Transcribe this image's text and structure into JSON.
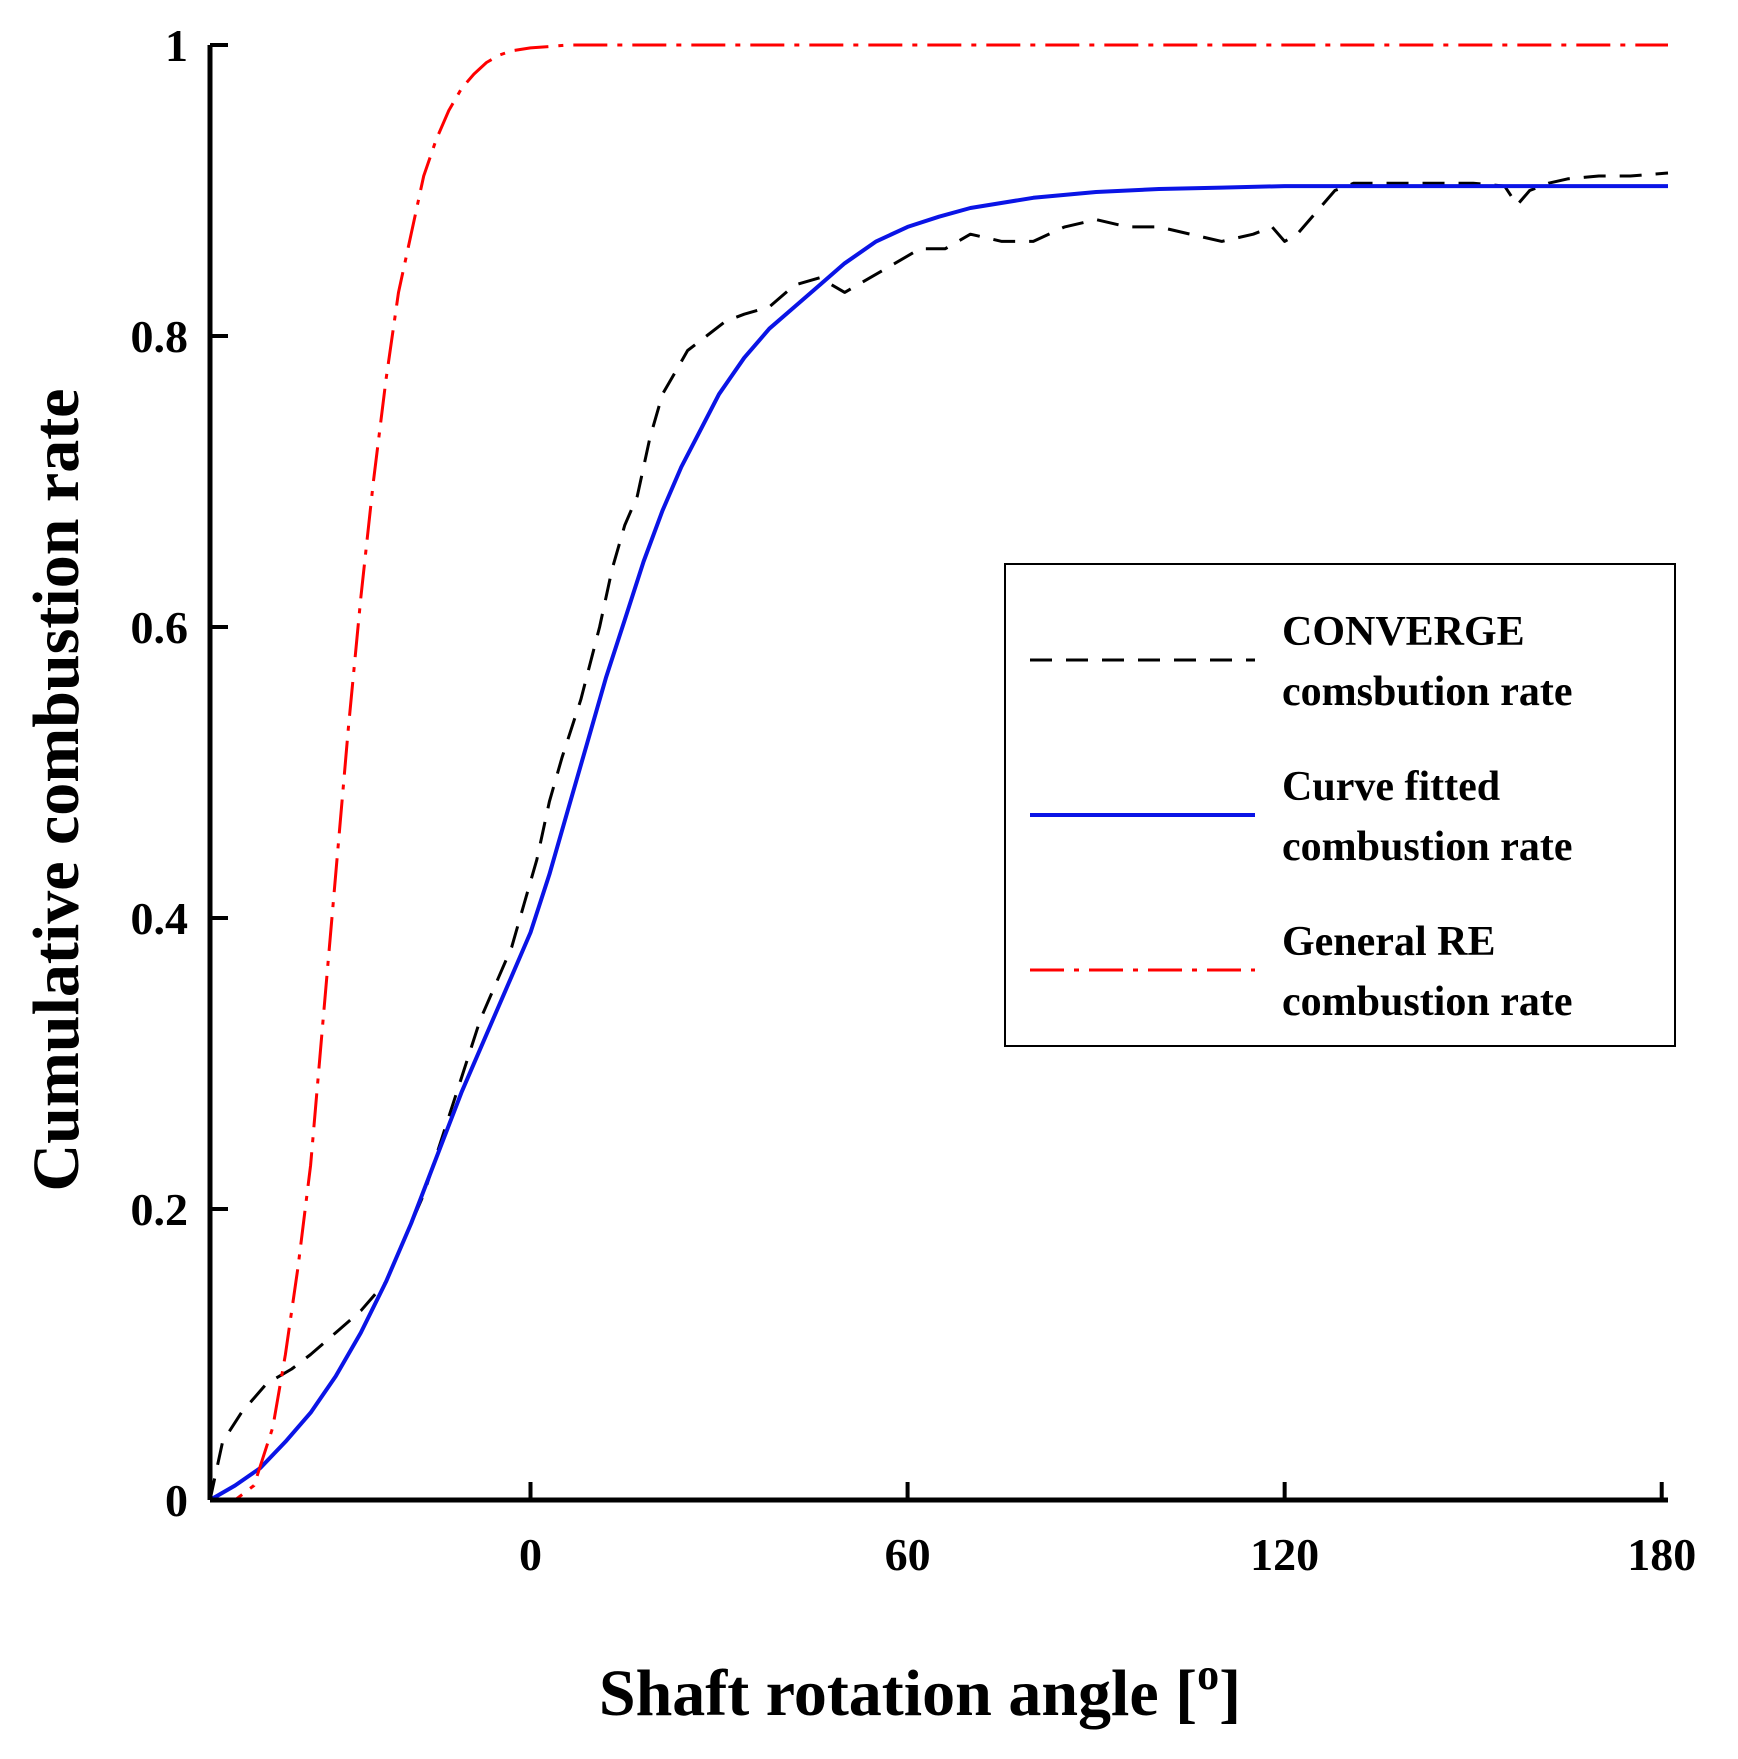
{
  "chart_data": {
    "type": "line",
    "xlabel": "Shaft rotation angle [",
    "xlabel_unit": "o",
    "xlabel_close": "]",
    "ylabel": "Cumulative  combustion  rate",
    "xlim": [
      -51,
      181
    ],
    "ylim": [
      0,
      1
    ],
    "x_ticks": [
      0,
      60,
      120,
      180
    ],
    "x_tick_labels": [
      "0",
      "60",
      "120",
      "180"
    ],
    "y_ticks": [
      0,
      0.2,
      0.4,
      0.6,
      0.8,
      1
    ],
    "y_tick_labels": [
      "0",
      "0.2",
      "0.4",
      "0.6",
      "0.8",
      "1"
    ],
    "grid": false,
    "legend_position": "right-middle",
    "series": [
      {
        "name_lines": [
          "CONVERGE",
          "comsbution rate"
        ],
        "color": "#000000",
        "dash": "dashed",
        "x": [
          -51,
          -49,
          -46,
          -42,
          -38,
          -35,
          -31,
          -27,
          -23,
          -20,
          -17,
          -14,
          -11,
          -8,
          -5,
          -3,
          -1,
          1,
          3,
          5,
          8,
          11,
          13,
          15,
          17,
          19,
          21,
          23,
          25,
          28,
          31,
          34,
          38,
          42,
          46,
          50,
          54,
          58,
          62,
          66,
          70,
          75,
          80,
          85,
          90,
          95,
          100,
          105,
          110,
          115,
          118,
          120,
          122,
          125,
          128,
          131,
          135,
          140,
          145,
          150,
          155,
          157,
          159,
          162,
          165,
          170,
          175,
          181
        ],
        "y": [
          0.0,
          0.04,
          0.06,
          0.08,
          0.09,
          0.1,
          0.115,
          0.13,
          0.15,
          0.18,
          0.21,
          0.25,
          0.29,
          0.33,
          0.36,
          0.38,
          0.41,
          0.44,
          0.48,
          0.51,
          0.55,
          0.6,
          0.64,
          0.67,
          0.69,
          0.73,
          0.76,
          0.775,
          0.79,
          0.8,
          0.81,
          0.815,
          0.82,
          0.835,
          0.84,
          0.83,
          0.84,
          0.85,
          0.86,
          0.86,
          0.87,
          0.865,
          0.865,
          0.875,
          0.88,
          0.875,
          0.875,
          0.87,
          0.865,
          0.87,
          0.875,
          0.865,
          0.87,
          0.885,
          0.9,
          0.905,
          0.905,
          0.905,
          0.905,
          0.905,
          0.903,
          0.89,
          0.9,
          0.905,
          0.908,
          0.91,
          0.91,
          0.912
        ]
      },
      {
        "name_lines": [
          "Curve fitted",
          "combustion rate"
        ],
        "color": "#0a14e6",
        "dash": "solid",
        "x": [
          -51,
          -47,
          -43,
          -39,
          -35,
          -31,
          -27,
          -23,
          -19,
          -15,
          -11,
          -7,
          -3,
          0,
          3,
          6,
          9,
          12,
          15,
          18,
          21,
          24,
          27,
          30,
          34,
          38,
          42,
          46,
          50,
          55,
          60,
          65,
          70,
          80,
          90,
          100,
          110,
          120,
          130,
          140,
          150,
          160,
          170,
          181
        ],
        "y": [
          0.0,
          0.01,
          0.022,
          0.04,
          0.06,
          0.085,
          0.115,
          0.15,
          0.19,
          0.235,
          0.28,
          0.32,
          0.36,
          0.39,
          0.43,
          0.475,
          0.52,
          0.565,
          0.605,
          0.645,
          0.68,
          0.71,
          0.735,
          0.76,
          0.785,
          0.805,
          0.82,
          0.835,
          0.85,
          0.865,
          0.875,
          0.882,
          0.888,
          0.895,
          0.899,
          0.901,
          0.902,
          0.903,
          0.903,
          0.903,
          0.903,
          0.903,
          0.903,
          0.903
        ]
      },
      {
        "name_lines": [
          "General RE",
          "combustion rate"
        ],
        "color": "#ff0000",
        "dash": "dashdot",
        "x": [
          -51,
          -47,
          -44,
          -41,
          -39,
          -37,
          -35,
          -33,
          -31,
          -29,
          -27,
          -25,
          -23,
          -21,
          -19,
          -17,
          -15,
          -13,
          -11,
          -9,
          -7,
          -5,
          -3,
          0,
          3,
          6,
          10,
          20,
          40,
          60,
          90,
          120,
          150,
          181
        ],
        "y": [
          0.0,
          0.0,
          0.01,
          0.05,
          0.1,
          0.16,
          0.23,
          0.33,
          0.43,
          0.53,
          0.62,
          0.7,
          0.77,
          0.83,
          0.87,
          0.91,
          0.935,
          0.955,
          0.97,
          0.98,
          0.988,
          0.993,
          0.996,
          0.998,
          0.999,
          1.0,
          1.0,
          1.0,
          1.0,
          1.0,
          1.0,
          1.0,
          1.0,
          1.0
        ]
      }
    ]
  }
}
